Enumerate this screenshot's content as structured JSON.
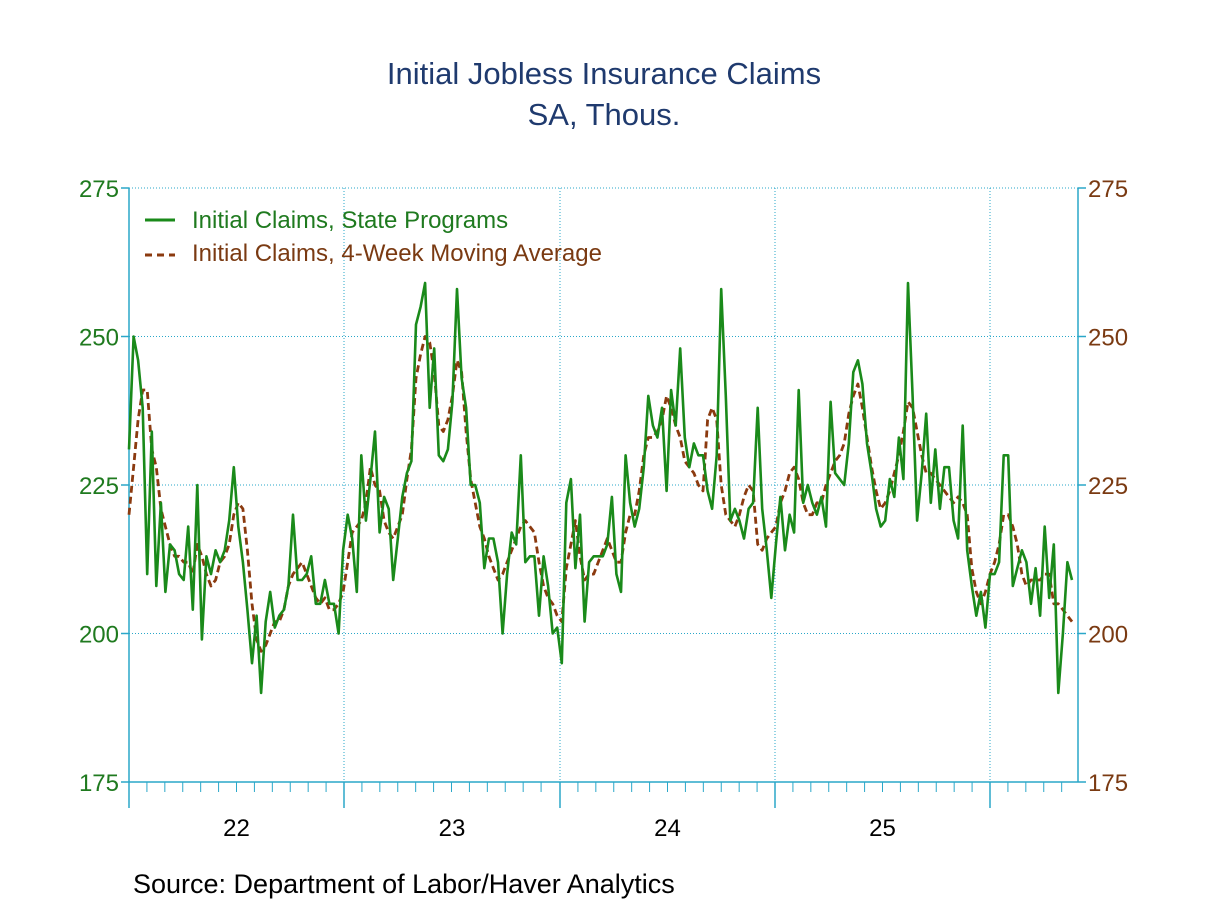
{
  "chart_data": {
    "type": "line",
    "title": "Initial Jobless Insurance Claims",
    "subtitle": "SA, Thous.",
    "source": "Source:  Department of Labor/Haver Analytics",
    "ylim": [
      175,
      275
    ],
    "y_ticks": [
      "175",
      "200",
      "225",
      "250",
      "275"
    ],
    "x_ticks": [
      "22",
      "23",
      "24",
      "25"
    ],
    "grid": true,
    "legend_position": "top-left",
    "colors": {
      "claims": "#1a8a1a",
      "average": "#8b3a0f",
      "grid": "#2aa7c9",
      "title": "#1f3a6e"
    },
    "series": [
      {
        "name": "Initial Claims, State Programs",
        "style": "solid",
        "values": [
          231,
          250,
          246,
          238,
          210,
          234,
          208,
          222,
          207,
          215,
          214,
          210,
          209,
          218,
          204,
          225,
          199,
          213,
          210,
          214,
          212,
          214,
          219,
          228,
          218,
          212,
          204,
          195,
          203,
          190,
          202,
          207,
          201,
          203,
          204,
          208,
          220,
          209,
          209,
          210,
          213,
          205,
          205,
          209,
          205,
          205,
          200,
          214,
          220,
          216,
          207,
          230,
          219,
          226,
          234,
          217,
          223,
          221,
          209,
          216,
          223,
          227,
          229,
          252,
          255,
          259,
          238,
          248,
          230,
          229,
          231,
          239,
          258,
          243,
          238,
          225,
          225,
          222,
          211,
          216,
          216,
          212,
          200,
          210,
          217,
          215,
          230,
          212,
          213,
          213,
          203,
          213,
          208,
          200,
          201,
          195,
          222,
          226,
          211,
          220,
          202,
          212,
          213,
          213,
          213,
          215,
          223,
          210,
          207,
          230,
          222,
          218,
          221,
          228,
          240,
          235,
          233,
          238,
          224,
          241,
          235,
          248,
          233,
          228,
          232,
          230,
          230,
          224,
          221,
          230,
          258,
          240,
          219,
          221,
          219,
          216,
          221,
          222,
          238,
          221,
          214,
          206,
          215,
          223,
          214,
          220,
          217,
          241,
          222,
          225,
          222,
          220,
          223,
          218,
          239,
          227,
          226,
          225,
          232,
          244,
          246,
          242,
          232,
          227,
          221,
          218,
          219,
          226,
          223,
          233,
          226,
          259,
          240,
          219,
          227,
          237,
          222,
          231,
          221,
          228,
          228,
          219,
          216,
          235,
          214,
          208,
          203,
          207,
          201,
          210,
          210,
          212,
          230,
          230,
          208,
          211,
          214,
          212,
          205,
          211,
          203,
          218,
          206,
          215,
          190,
          200,
          212,
          209
        ]
      },
      {
        "name": "Initial Claims, 4-Week Moving Average",
        "style": "dashed",
        "values": [
          220,
          228,
          236,
          241,
          241,
          231,
          228,
          221,
          218,
          215,
          213,
          213,
          212,
          212,
          210,
          215,
          213,
          210,
          208,
          209,
          212,
          213,
          215,
          220,
          222,
          221,
          214,
          205,
          199,
          197,
          198,
          200,
          202,
          202,
          204,
          208,
          210,
          211,
          212,
          210,
          208,
          206,
          205,
          206,
          204,
          204,
          205,
          207,
          212,
          217,
          218,
          219,
          222,
          228,
          225,
          224,
          219,
          217,
          216,
          218,
          220,
          226,
          231,
          243,
          247,
          250,
          249,
          244,
          235,
          234,
          236,
          240,
          246,
          244,
          234,
          226,
          222,
          218,
          216,
          213,
          211,
          209,
          210,
          212,
          214,
          216,
          218,
          219,
          218,
          217,
          212,
          208,
          206,
          205,
          203,
          202,
          211,
          215,
          219,
          213,
          209,
          210,
          210,
          212,
          214,
          216,
          214,
          212,
          212,
          217,
          220,
          220,
          224,
          230,
          233,
          233,
          234,
          236,
          240,
          238,
          235,
          233,
          229,
          228,
          227,
          225,
          224,
          236,
          238,
          236,
          225,
          220,
          219,
          218,
          220,
          223,
          225,
          224,
          215,
          214,
          216,
          217,
          218,
          222,
          224,
          227,
          228,
          226,
          222,
          220,
          220,
          222,
          222,
          225,
          227,
          229,
          230,
          232,
          237,
          240,
          242,
          238,
          233,
          228,
          224,
          221,
          222,
          224,
          227,
          230,
          234,
          239,
          238,
          234,
          230,
          227,
          227,
          226,
          225,
          224,
          223,
          222,
          223,
          222,
          220,
          211,
          207,
          205,
          207,
          210,
          212,
          215,
          220,
          220,
          218,
          215,
          210,
          208,
          209,
          209,
          209,
          210,
          210,
          205,
          205,
          204,
          203,
          202
        ]
      }
    ]
  }
}
